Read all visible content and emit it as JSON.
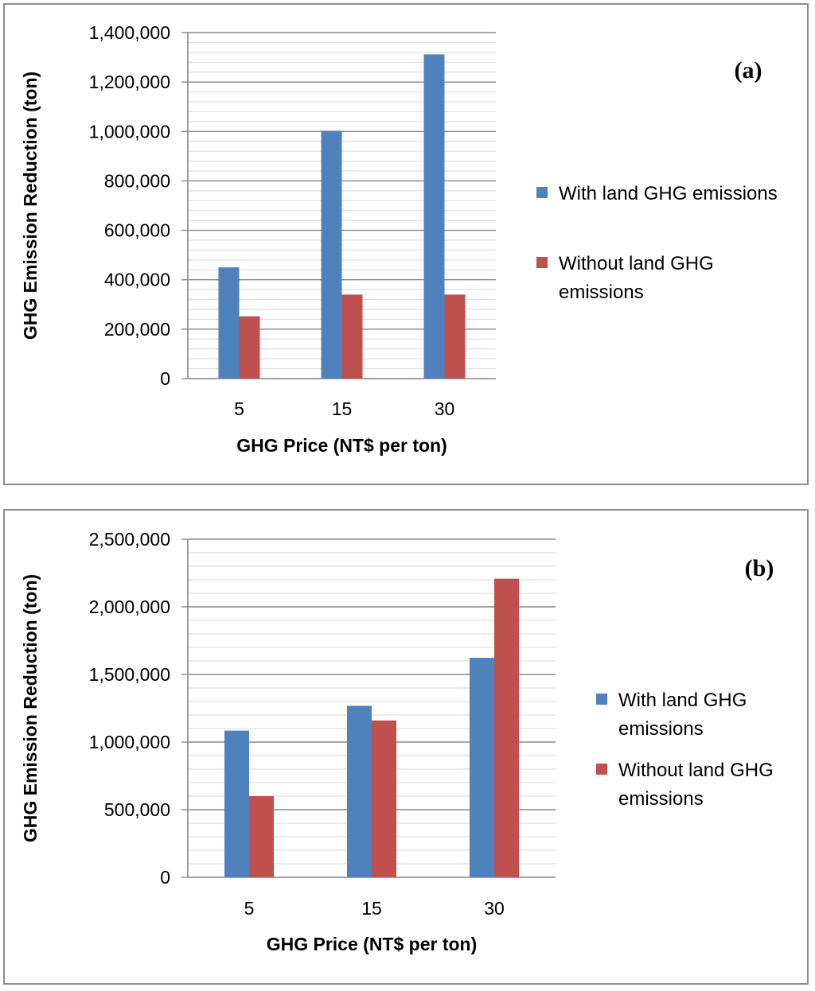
{
  "chart_data": [
    {
      "type": "bar",
      "panel_label": "(a)",
      "categories": [
        "5",
        "15",
        "30"
      ],
      "series": [
        {
          "name": "With land GHG emissions",
          "legend_lines": [
            "With land GHG emissions"
          ],
          "color": "#4f81bd",
          "values": [
            450000,
            1003000,
            1312000
          ]
        },
        {
          "name": "Without land GHG emissions",
          "legend_lines": [
            "Without land GHG",
            "emissions"
          ],
          "color": "#c0504d",
          "values": [
            252000,
            340000,
            340000
          ]
        }
      ],
      "ylim": [
        0,
        1400000
      ],
      "major_ticks": [
        0,
        200000,
        400000,
        600000,
        800000,
        1000000,
        1200000,
        1400000
      ],
      "tick_labels": [
        "0",
        "200,000",
        "400,000",
        "600,000",
        "800,000",
        "1,000,000",
        "1,200,000",
        "1,400,000"
      ],
      "minor_step": 40000,
      "xlabel": "GHG Price (NT$ per ton)",
      "ylabel": "GHG Emission Reduction (ton)"
    },
    {
      "type": "bar",
      "panel_label": "(b)",
      "categories": [
        "5",
        "15",
        "30"
      ],
      "series": [
        {
          "name": "With land GHG emissions",
          "legend_lines": [
            "With land GHG",
            "emissions"
          ],
          "color": "#4f81bd",
          "values": [
            1085000,
            1268000,
            1623000
          ]
        },
        {
          "name": "Without land GHG emissions",
          "legend_lines": [
            "Without land GHG",
            "emissions"
          ],
          "color": "#c0504d",
          "values": [
            600000,
            1160000,
            2208000
          ]
        }
      ],
      "ylim": [
        0,
        2500000
      ],
      "major_ticks": [
        0,
        500000,
        1000000,
        1500000,
        2000000,
        2500000
      ],
      "tick_labels": [
        "0",
        "500,000",
        "1,000,000",
        "1,500,000",
        "2,000,000",
        "2,500,000"
      ],
      "minor_step": 100000,
      "xlabel": "GHG Price (NT$ per ton)",
      "ylabel": "GHG Emission Reduction (ton)"
    }
  ]
}
